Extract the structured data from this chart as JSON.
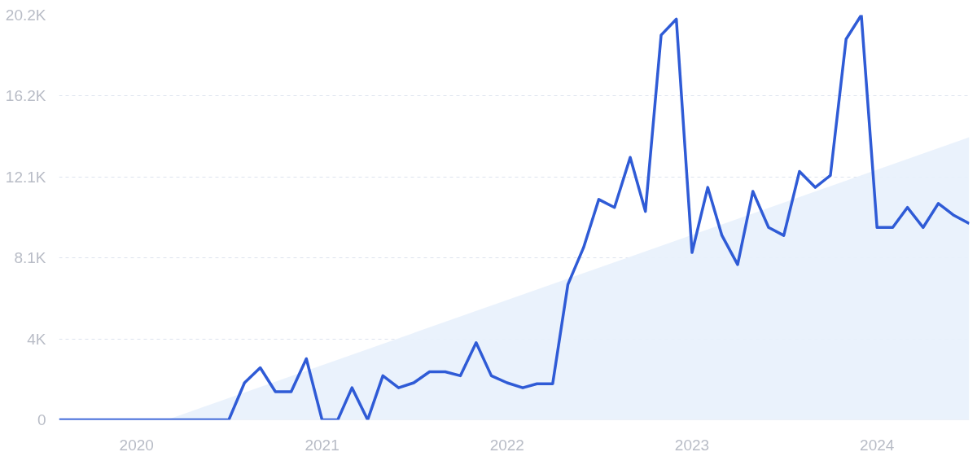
{
  "chart_data": {
    "type": "line",
    "x": [
      "2019-08",
      "2019-09",
      "2019-10",
      "2019-11",
      "2019-12",
      "2020-01",
      "2020-02",
      "2020-03",
      "2020-04",
      "2020-05",
      "2020-06",
      "2020-07",
      "2020-08",
      "2020-09",
      "2020-10",
      "2020-11",
      "2020-12",
      "2021-01",
      "2021-02",
      "2021-03",
      "2021-04",
      "2021-05",
      "2021-06",
      "2021-07",
      "2021-08",
      "2021-09",
      "2021-10",
      "2021-11",
      "2021-12",
      "2022-01",
      "2022-02",
      "2022-03",
      "2022-04",
      "2022-05",
      "2022-06",
      "2022-07",
      "2022-08",
      "2022-09",
      "2022-10",
      "2022-11",
      "2022-12",
      "2023-01",
      "2023-02",
      "2023-03",
      "2023-04",
      "2023-05",
      "2023-06",
      "2023-07",
      "2023-08",
      "2023-09",
      "2023-10",
      "2023-11",
      "2023-12",
      "2024-01",
      "2024-02",
      "2024-03",
      "2024-04",
      "2024-05",
      "2024-06",
      "2024-07"
    ],
    "series": [
      {
        "type": "area",
        "color": "#e8f1fc",
        "x": [
          "2020-03",
          "2024-07"
        ],
        "values": [
          0,
          14100
        ]
      },
      {
        "color": "#2f5bd6",
        "values": [
          0,
          0,
          0,
          0,
          0,
          0,
          0,
          0,
          0,
          0,
          0,
          0,
          1850,
          2600,
          1400,
          1400,
          3050,
          0,
          0,
          1600,
          0,
          2200,
          1600,
          1850,
          2400,
          2400,
          2200,
          3850,
          2200,
          1850,
          1600,
          1800,
          1800,
          6750,
          8600,
          11000,
          10600,
          13100,
          10400,
          19200,
          20000,
          8350,
          11600,
          9200,
          7750,
          11400,
          9600,
          9200,
          12400,
          11600,
          12200,
          19000,
          20200,
          9600,
          9600,
          10600,
          9600,
          10800,
          10200,
          9800
        ]
      }
    ],
    "xlim": [
      "2019-08",
      "2024-07"
    ],
    "xticks": [
      "2020",
      "2021",
      "2022",
      "2023",
      "2024"
    ],
    "ylim": [
      0,
      20200
    ],
    "yticks": [
      0,
      {
        "value": 4040,
        "label": "4K"
      },
      {
        "value": 8080,
        "label": "8.1K"
      },
      {
        "value": 12120,
        "label": "12.1K"
      },
      {
        "value": 16160,
        "label": "16.2K"
      },
      {
        "value": 20200,
        "label": "20.2K"
      }
    ],
    "grid": "y",
    "line_style": "solid"
  }
}
